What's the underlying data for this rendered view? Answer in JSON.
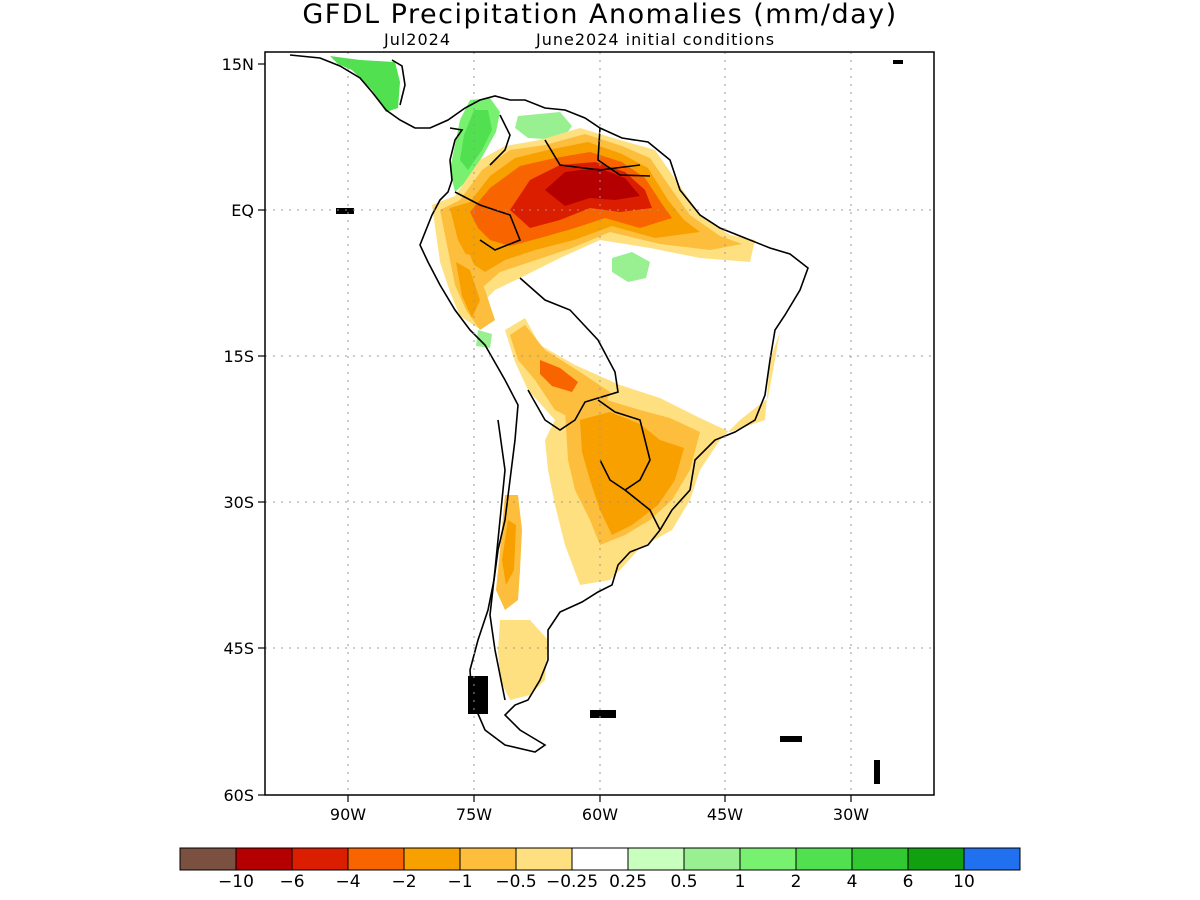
{
  "title": "GFDL Precipitation Anomalies (mm/day)",
  "valid_period": "Jul2024",
  "init_text": "June2024 initial conditions",
  "map": {
    "lat_labels": [
      "15N",
      "EQ",
      "15S",
      "30S",
      "45S",
      "60S"
    ],
    "lon_labels": [
      "90W",
      "75W",
      "60W",
      "45W",
      "30W"
    ],
    "lat_range": [
      -60,
      15
    ],
    "lon_range": [
      -100,
      -20
    ]
  },
  "colorbar": {
    "colors": [
      "#7a5040",
      "#b40000",
      "#dc1e00",
      "#f86400",
      "#f8a000",
      "#fcbe3c",
      "#ffe080",
      "#ffffff",
      "#c8ffbe",
      "#98f090",
      "#78f070",
      "#50e050",
      "#32c832",
      "#10a010",
      "#2070f0"
    ],
    "labels": [
      "−10",
      "−6",
      "−4",
      "−2",
      "−1",
      "−0.5",
      "−0.25",
      "0.25",
      "0.5",
      "1",
      "2",
      "4",
      "6",
      "10"
    ]
  }
}
